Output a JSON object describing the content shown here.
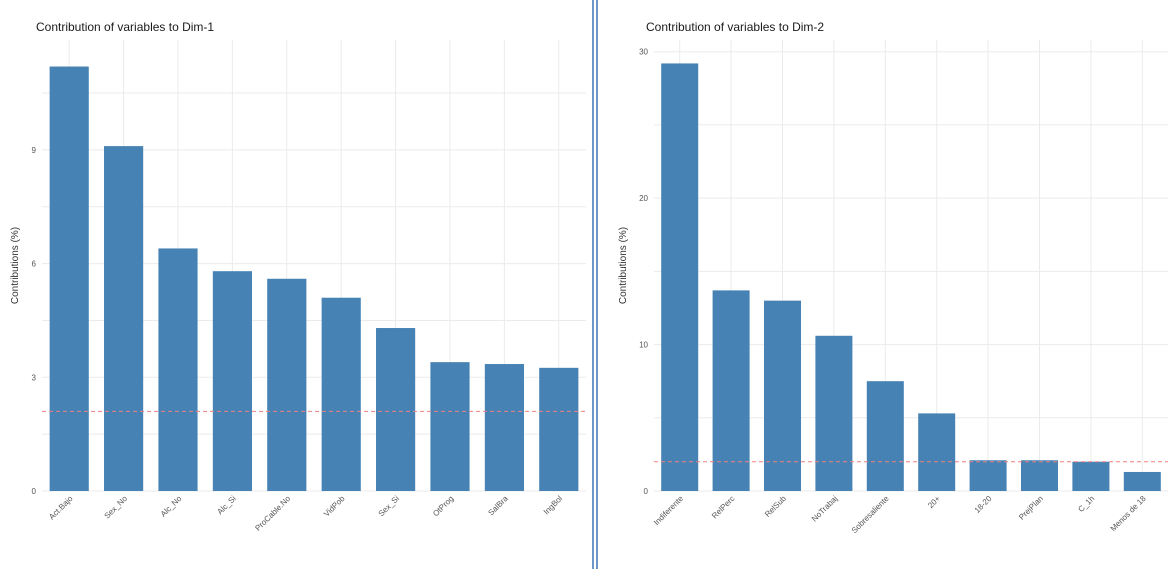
{
  "colors": {
    "bar": "#4682b4",
    "threshold": "#f08080",
    "grid": "#ebebeb",
    "divider": "#6f96c8"
  },
  "chart_data": [
    {
      "type": "bar",
      "title": "Contribution of variables to Dim-1",
      "xlabel": "",
      "ylabel": "Contributions (%)",
      "categories": [
        "Act.Bajo",
        "Sex_No",
        "Alc_No",
        "Alc_Si",
        "ProCable.No",
        "VidPob",
        "Sex_Si",
        "OtProg",
        "SalBra",
        "IngBol"
      ],
      "values": [
        11.2,
        9.1,
        6.4,
        5.8,
        5.6,
        5.1,
        4.3,
        3.4,
        3.35,
        3.25
      ],
      "ylim": [
        0,
        11.9
      ],
      "yticks": [
        0,
        3,
        6,
        9
      ],
      "threshold": 2.1,
      "grid": true
    },
    {
      "type": "bar",
      "title": "Contribution of variables to Dim-2",
      "xlabel": "",
      "ylabel": "Contributions (%)",
      "categories": [
        "Indiferente",
        "RelPerc",
        "RelSub",
        "NoTrabaj",
        "Sobresaliente",
        "20+",
        "18-20",
        "PrejPlan",
        "C_1h",
        "Menos de 18"
      ],
      "values": [
        29.2,
        13.7,
        13.0,
        10.6,
        7.5,
        5.3,
        2.1,
        2.1,
        2.0,
        1.3
      ],
      "ylim": [
        0,
        30.8
      ],
      "yticks": [
        0,
        10,
        20,
        30
      ],
      "threshold": 2.0,
      "grid": true
    }
  ]
}
